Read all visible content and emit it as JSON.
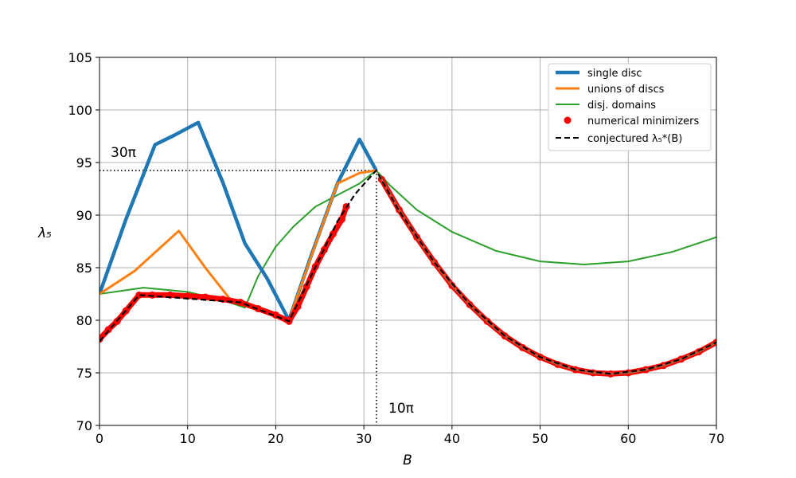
{
  "chart_data": {
    "type": "line",
    "title": "",
    "xlabel": "B",
    "ylabel": "λ₅",
    "xlim": [
      0,
      70
    ],
    "ylim": [
      70,
      105
    ],
    "grid": true,
    "x_ticks": [
      0,
      10,
      20,
      30,
      40,
      50,
      60,
      70
    ],
    "y_ticks": [
      70,
      75,
      80,
      85,
      90,
      95,
      100,
      105
    ],
    "legend_position": "top-right",
    "annotations": [
      {
        "text": "30π",
        "x": 1.3,
        "y": 95.3,
        "type": "horizontal-dotted",
        "value": 94.25
      },
      {
        "text": "10π",
        "x": 32.7,
        "y": 71.3,
        "type": "vertical-dotted",
        "value": 31.42
      }
    ],
    "series": [
      {
        "name": "single disc",
        "color": "#1f77b4",
        "points": [
          [
            0,
            82.5
          ],
          [
            3,
            89.6
          ],
          [
            6.3,
            96.7
          ],
          [
            8.5,
            97.6
          ],
          [
            11.2,
            98.8
          ],
          [
            14,
            93.1
          ],
          [
            16.5,
            87.3
          ],
          [
            19,
            84
          ],
          [
            21.5,
            80
          ],
          [
            24,
            86.1
          ],
          [
            27,
            93
          ],
          [
            29.5,
            97.2
          ],
          [
            31.4,
            94.25
          ]
        ]
      },
      {
        "name": "unions of discs",
        "color": "#ff7f0e",
        "points": [
          [
            0,
            82.5
          ],
          [
            4,
            84.7
          ],
          [
            9,
            88.5
          ],
          [
            12,
            85
          ],
          [
            15,
            81.8
          ],
          [
            17,
            81.3
          ],
          [
            21.5,
            80
          ],
          [
            24,
            86
          ],
          [
            27,
            93
          ],
          [
            29.5,
            94
          ],
          [
            31.4,
            94.25
          ]
        ]
      },
      {
        "name": "disj. domains",
        "color": "#2ca02c",
        "points": [
          [
            0,
            82.5
          ],
          [
            5,
            83.1
          ],
          [
            10,
            82.7
          ],
          [
            14,
            81.9
          ],
          [
            16.5,
            81.2
          ],
          [
            18,
            84.2
          ],
          [
            20,
            87
          ],
          [
            22,
            88.9
          ],
          [
            24.5,
            90.8
          ],
          [
            27,
            91.9
          ],
          [
            29.5,
            93
          ],
          [
            31.4,
            94.25
          ],
          [
            33,
            92.8
          ],
          [
            36,
            90.5
          ],
          [
            40,
            88.4
          ],
          [
            45,
            86.6
          ],
          [
            50,
            85.6
          ],
          [
            55,
            85.3
          ],
          [
            60,
            85.6
          ],
          [
            65,
            86.5
          ],
          [
            70,
            87.9
          ]
        ]
      },
      {
        "name": "numerical minimizers",
        "color": "#ff0000",
        "points": [
          [
            0,
            78.2
          ],
          [
            1,
            79.1
          ],
          [
            2,
            79.9
          ],
          [
            3,
            80.9
          ],
          [
            4.5,
            82.4
          ],
          [
            6,
            82.4
          ],
          [
            8,
            82.4
          ],
          [
            10,
            82.3
          ],
          [
            12,
            82.2
          ],
          [
            14,
            82
          ],
          [
            16,
            81.7
          ],
          [
            18,
            81.1
          ],
          [
            20,
            80.5
          ],
          [
            21.5,
            79.9
          ],
          [
            22.5,
            81.3
          ],
          [
            23.5,
            83.2
          ],
          [
            24.5,
            85.1
          ],
          [
            25.5,
            86.7
          ],
          [
            26.5,
            88.2
          ],
          [
            27.5,
            89.6
          ],
          [
            28,
            90.8
          ],
          [
            32,
            93.4
          ],
          [
            34,
            90.5
          ],
          [
            36,
            87.9
          ],
          [
            38,
            85.5
          ],
          [
            40,
            83.3
          ],
          [
            42,
            81.5
          ],
          [
            44,
            79.9
          ],
          [
            46,
            78.5
          ],
          [
            48,
            77.4
          ],
          [
            50,
            76.5
          ],
          [
            52,
            75.8
          ],
          [
            54,
            75.3
          ],
          [
            56,
            75
          ],
          [
            58,
            74.9
          ],
          [
            60,
            75
          ],
          [
            62,
            75.3
          ],
          [
            64,
            75.7
          ],
          [
            66,
            76.3
          ],
          [
            68,
            77
          ],
          [
            70,
            77.9
          ]
        ]
      },
      {
        "name": "conjectured λ₅*(B)",
        "color": "#000000",
        "points": [
          [
            0,
            78
          ],
          [
            4.5,
            82.4
          ],
          [
            16,
            81.7
          ],
          [
            21.5,
            79.9
          ],
          [
            24,
            84.2
          ],
          [
            27,
            89.4
          ],
          [
            29,
            92
          ],
          [
            31.4,
            94.25
          ],
          [
            34,
            90.4
          ],
          [
            38,
            85.5
          ],
          [
            42,
            81.5
          ],
          [
            46,
            78.5
          ],
          [
            50,
            76.5
          ],
          [
            54,
            75.3
          ],
          [
            58,
            74.9
          ],
          [
            62,
            75.3
          ],
          [
            66,
            76.3
          ],
          [
            70,
            77.9
          ]
        ]
      }
    ]
  }
}
